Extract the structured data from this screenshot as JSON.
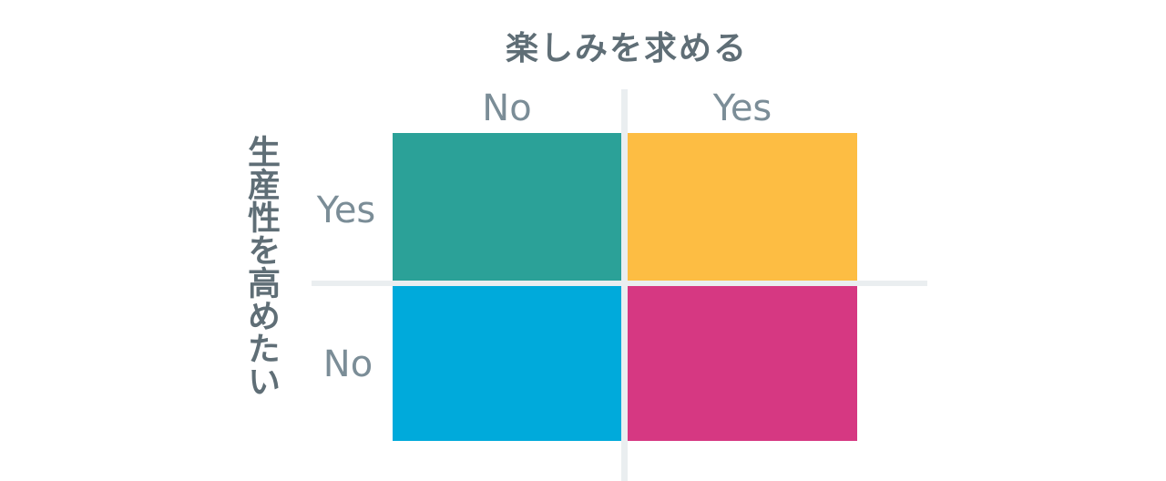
{
  "x_axis": {
    "title": "楽しみを求める",
    "labels": [
      "No",
      "Yes"
    ]
  },
  "y_axis": {
    "title": "生産性を高めたい",
    "labels": [
      "Yes",
      "No"
    ]
  },
  "quadrants": [
    {
      "position": "top-left",
      "color": "#2ba198"
    },
    {
      "position": "top-right",
      "color": "#fdbd43"
    },
    {
      "position": "bottom-left",
      "color": "#00aadb"
    },
    {
      "position": "bottom-right",
      "color": "#d63882"
    }
  ]
}
